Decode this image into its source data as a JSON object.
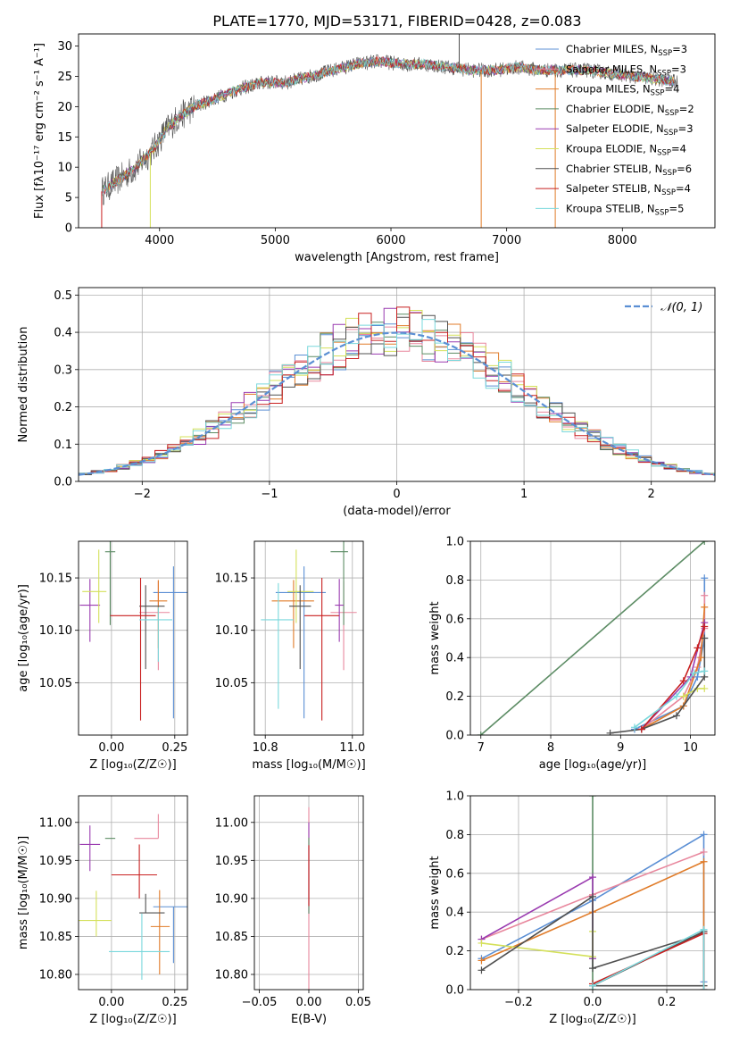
{
  "title": "PLATE=1770, MJD=53171, FIBERID=0428, z=0.083",
  "colors": {
    "chabrier_miles": "#5b8fd4",
    "salpeter_miles": "#e8879d",
    "kroupa_miles": "#e07b28",
    "chabrier_elodie": "#5c8c64",
    "salpeter_elodie": "#9a3bb0",
    "kroupa_elodie": "#d4e05a",
    "chabrier_stelib": "#505050",
    "salpeter_stelib": "#c82020",
    "kroupa_stelib": "#7ad8dc",
    "normal_curve": "#5b8fd4"
  },
  "chart_data": [
    {
      "type": "line",
      "panel": "spectrum",
      "xlabel": "wavelength [Angstrom, rest frame]",
      "ylabel": "Flux [fλ10⁻¹⁷ erg cm⁻² s⁻¹ A⁻¹]",
      "xlim": [
        3300,
        8800
      ],
      "ylim": [
        0,
        32
      ],
      "xticks": [
        "4000",
        "5000",
        "6000",
        "7000",
        "8000"
      ],
      "yticks": [
        "0",
        "5",
        "10",
        "15",
        "20",
        "25",
        "30"
      ],
      "legend_position": "right",
      "legend": [
        {
          "label": "Chabrier MILES, N",
          "sub": "SSP",
          "tail": "=3",
          "color": "chabrier_miles"
        },
        {
          "label": "Salpeter MILES, N",
          "sub": "SSP",
          "tail": "=3",
          "color": "salpeter_miles"
        },
        {
          "label": "Kroupa MILES, N",
          "sub": "SSP",
          "tail": "=4",
          "color": "kroupa_miles"
        },
        {
          "label": "Chabrier ELODIE, N",
          "sub": "SSP",
          "tail": "=2",
          "color": "chabrier_elodie"
        },
        {
          "label": "Salpeter ELODIE, N",
          "sub": "SSP",
          "tail": "=3",
          "color": "salpeter_elodie"
        },
        {
          "label": "Kroupa ELODIE, N",
          "sub": "SSP",
          "tail": "=4",
          "color": "kroupa_elodie"
        },
        {
          "label": "Chabrier STELIB, N",
          "sub": "SSP",
          "tail": "=6",
          "color": "chabrier_stelib"
        },
        {
          "label": "Salpeter STELIB, N",
          "sub": "SSP",
          "tail": "=4",
          "color": "salpeter_stelib"
        },
        {
          "label": "Kroupa STELIB, N",
          "sub": "SSP",
          "tail": "=5",
          "color": "kroupa_stelib"
        }
      ],
      "continuum": {
        "x": [
          3500,
          3650,
          3800,
          3950,
          4050,
          4150,
          4300,
          4500,
          4700,
          4900,
          5100,
          5300,
          5500,
          5700,
          5900,
          6100,
          6300,
          6500,
          6700,
          6900,
          7100,
          7300,
          7500,
          7700,
          7900,
          8100,
          8300,
          8500
        ],
        "y": [
          6,
          8,
          10,
          13,
          16,
          18,
          20,
          21.5,
          23,
          24,
          24,
          25,
          26,
          27,
          27.5,
          27,
          27,
          26.5,
          26,
          26,
          26.5,
          26,
          26,
          26,
          25.5,
          25,
          24.5,
          24
        ]
      },
      "spikes": [
        {
          "x": 3920,
          "y": 0,
          "color": "kroupa_elodie"
        },
        {
          "x": 6780,
          "y": 0,
          "color": "kroupa_miles"
        },
        {
          "x": 7420,
          "y": 0,
          "color": "kroupa_miles"
        },
        {
          "x": 3500,
          "y": 0,
          "color": "salpeter_stelib"
        },
        {
          "x": 6590,
          "y": 32,
          "color": "chabrier_stelib"
        }
      ]
    },
    {
      "type": "step",
      "panel": "residual_histogram",
      "xlabel": "(data-model)/error",
      "ylabel": "Normed distribution",
      "xlim": [
        -2.5,
        2.5
      ],
      "ylim": [
        0,
        0.52
      ],
      "xticks": [
        "−2",
        "−1",
        "0",
        "1",
        "2"
      ],
      "yticks": [
        "0.0",
        "0.1",
        "0.2",
        "0.3",
        "0.4",
        "0.5"
      ],
      "grid": true,
      "legend_position": "top-right",
      "legend": [
        {
          "label": "𝒩(0, 1)",
          "color": "normal_curve"
        }
      ],
      "bin_width": 0.1,
      "bins_start": -2.5,
      "series_colors": [
        "chabrier_miles",
        "salpeter_miles",
        "kroupa_miles",
        "chabrier_elodie",
        "salpeter_elodie",
        "kroupa_elodie",
        "chabrier_stelib",
        "salpeter_stelib",
        "kroupa_stelib"
      ]
    },
    {
      "type": "scatter",
      "panel": "age_vs_Z",
      "xlabel": "Z [log₁₀(Z/Z☉)]",
      "ylabel": "age  [log₁₀(age/yr)]",
      "xlim": [
        -0.13,
        0.3
      ],
      "ylim": [
        10.0,
        10.185
      ],
      "xticks": [
        "0.00",
        "0.25"
      ],
      "yticks": [
        "10.05",
        "10.10",
        "10.15"
      ],
      "grid": true,
      "points": [
        {
          "x": 0.245,
          "y": 10.136,
          "xerr": [
            0.08,
            0.055
          ],
          "yerr": [
            0.12,
            0.025
          ],
          "color": "chabrier_miles"
        },
        {
          "x": 0.185,
          "y": 10.117,
          "xerr": [
            0.075,
            0.045
          ],
          "yerr": [
            0.055,
            0.03
          ],
          "color": "salpeter_miles"
        },
        {
          "x": 0.185,
          "y": 10.128,
          "xerr": [
            0.035,
            0.035
          ],
          "yerr": [
            0.045,
            0.02
          ],
          "color": "kroupa_miles"
        },
        {
          "x": -0.005,
          "y": 10.175,
          "xerr": [
            0.02,
            0.02
          ],
          "yerr": [
            0.07,
            0.03
          ],
          "color": "chabrier_elodie"
        },
        {
          "x": -0.085,
          "y": 10.124,
          "xerr": [
            0.04,
            0.04
          ],
          "yerr": [
            0.035,
            0.025
          ],
          "color": "salpeter_elodie"
        },
        {
          "x": -0.05,
          "y": 10.137,
          "xerr": [
            0.065,
            0.03
          ],
          "yerr": [
            0.03,
            0.04
          ],
          "color": "kroupa_elodie"
        },
        {
          "x": 0.135,
          "y": 10.123,
          "xerr": [
            0.025,
            0.075
          ],
          "yerr": [
            0.06,
            0.02
          ],
          "color": "chabrier_stelib"
        },
        {
          "x": 0.115,
          "y": 10.114,
          "xerr": [
            0.12,
            0.06
          ],
          "yerr": [
            0.1,
            0.036
          ],
          "color": "salpeter_stelib"
        },
        {
          "x": 0.185,
          "y": 10.11,
          "xerr": [
            0.075,
            0.055
          ],
          "yerr": [
            0.04,
            0.012
          ],
          "color": "kroupa_stelib"
        }
      ]
    },
    {
      "type": "scatter",
      "panel": "age_vs_mass",
      "xlabel": "mass [log₁₀(M/M☉)]",
      "ylabel": "",
      "xlim": [
        10.775,
        11.025
      ],
      "ylim": [
        10.0,
        10.185
      ],
      "xticks": [
        "10.8",
        "11.0"
      ],
      "yticks": [
        "10.05",
        "10.10",
        "10.15"
      ],
      "grid": true,
      "points": [
        {
          "x": 10.889,
          "y": 10.136,
          "xerr": [
            0.065,
            0.05
          ],
          "yerr": [
            0.12,
            0.025
          ],
          "color": "chabrier_miles"
        },
        {
          "x": 10.98,
          "y": 10.117,
          "xerr": [
            0.03,
            0.03
          ],
          "yerr": [
            0.055,
            0.03
          ],
          "color": "salpeter_miles"
        },
        {
          "x": 10.865,
          "y": 10.128,
          "xerr": [
            0.05,
            0.047
          ],
          "yerr": [
            0.045,
            0.02
          ],
          "color": "kroupa_miles"
        },
        {
          "x": 10.98,
          "y": 10.175,
          "xerr": [
            0.03,
            0.01
          ],
          "yerr": [
            0.07,
            0.03
          ],
          "color": "chabrier_elodie"
        },
        {
          "x": 10.97,
          "y": 10.124,
          "xerr": [
            0.01,
            0.01
          ],
          "yerr": [
            0.035,
            0.025
          ],
          "color": "salpeter_elodie"
        },
        {
          "x": 10.871,
          "y": 10.137,
          "xerr": [
            0.02,
            0.04
          ],
          "yerr": [
            0.03,
            0.04
          ],
          "color": "kroupa_elodie"
        },
        {
          "x": 10.88,
          "y": 10.123,
          "xerr": [
            0.025,
            0.025
          ],
          "yerr": [
            0.06,
            0.02
          ],
          "color": "chabrier_stelib"
        },
        {
          "x": 10.93,
          "y": 10.114,
          "xerr": [
            0.04,
            0.04
          ],
          "yerr": [
            0.1,
            0.036
          ],
          "color": "salpeter_stelib"
        },
        {
          "x": 10.83,
          "y": 10.11,
          "xerr": [
            0.04,
            0.035
          ],
          "yerr": [
            0.085,
            0.035
          ],
          "color": "kroupa_stelib"
        }
      ]
    },
    {
      "type": "line",
      "panel": "mass_weight_vs_age",
      "xlabel": "age  [log₁₀(age/yr)]",
      "ylabel": "mass weight",
      "xlim": [
        6.85,
        10.35
      ],
      "ylim": [
        0,
        1.0
      ],
      "xticks": [
        "7",
        "8",
        "9",
        "10"
      ],
      "yticks": [
        "0.0",
        "0.2",
        "0.4",
        "0.6",
        "0.8",
        "1.0"
      ],
      "grid": true,
      "series": [
        {
          "color": "chabrier_elodie",
          "x": [
            7.0,
            10.2
          ],
          "y": [
            0.0,
            1.0
          ]
        },
        {
          "color": "chabrier_miles",
          "x": [
            9.2,
            9.9,
            10.1,
            10.2,
            10.2
          ],
          "y": [
            0.03,
            0.15,
            0.3,
            0.5,
            0.81
          ]
        },
        {
          "color": "salpeter_miles",
          "x": [
            9.3,
            9.9,
            10.1,
            10.2,
            10.2
          ],
          "y": [
            0.03,
            0.2,
            0.35,
            0.55,
            0.72
          ]
        },
        {
          "color": "kroupa_miles",
          "x": [
            9.3,
            9.9,
            10.15,
            10.2
          ],
          "y": [
            0.03,
            0.15,
            0.4,
            0.66
          ]
        },
        {
          "color": "salpeter_elodie",
          "x": [
            9.3,
            10.0,
            10.2
          ],
          "y": [
            0.03,
            0.3,
            0.58
          ]
        },
        {
          "color": "kroupa_elodie",
          "x": [
            9.9,
            10.1,
            10.2
          ],
          "y": [
            0.2,
            0.24,
            0.24
          ]
        },
        {
          "color": "chabrier_stelib",
          "x": [
            8.85,
            9.3,
            9.8,
            10.2,
            10.2
          ],
          "y": [
            0.01,
            0.03,
            0.1,
            0.3,
            0.5
          ]
        },
        {
          "color": "salpeter_stelib",
          "x": [
            9.3,
            9.9,
            10.1,
            10.2
          ],
          "y": [
            0.03,
            0.28,
            0.45,
            0.56
          ]
        },
        {
          "color": "kroupa_stelib",
          "x": [
            9.2,
            9.8,
            10.05,
            10.2
          ],
          "y": [
            0.04,
            0.2,
            0.32,
            0.33
          ]
        }
      ]
    },
    {
      "type": "scatter",
      "panel": "mass_vs_Z",
      "xlabel": "Z [log₁₀(Z/Z☉)]",
      "ylabel": "mass [log₁₀(M/M☉)]",
      "xlim": [
        -0.13,
        0.3
      ],
      "ylim": [
        10.78,
        11.035
      ],
      "xticks": [
        "0.00",
        "0.25"
      ],
      "yticks": [
        "10.80",
        "10.85",
        "10.90",
        "10.95",
        "11.00"
      ],
      "grid": true,
      "points": [
        {
          "x": 0.245,
          "y": 10.889,
          "xerr": [
            0.08,
            0.055
          ],
          "yerr": [
            0.074,
            0.0
          ],
          "color": "chabrier_miles"
        },
        {
          "x": 0.185,
          "y": 10.979,
          "xerr": [
            0.095,
            0.0
          ],
          "yerr": [
            0.0,
            0.032
          ],
          "color": "salpeter_miles"
        },
        {
          "x": 0.19,
          "y": 10.863,
          "xerr": [
            0.035,
            0.04
          ],
          "yerr": [
            0.063,
            0.048
          ],
          "color": "kroupa_miles"
        },
        {
          "x": -0.005,
          "y": 10.979,
          "xerr": [
            0.02,
            0.02
          ],
          "yerr": [
            0.0,
            0.0
          ],
          "color": "chabrier_elodie"
        },
        {
          "x": -0.085,
          "y": 10.971,
          "xerr": [
            0.04,
            0.04
          ],
          "yerr": [
            0.035,
            0.025
          ],
          "color": "salpeter_elodie"
        },
        {
          "x": -0.06,
          "y": 10.871,
          "xerr": [
            0.07,
            0.06
          ],
          "yerr": [
            0.021,
            0.039
          ],
          "color": "kroupa_elodie"
        },
        {
          "x": 0.135,
          "y": 10.881,
          "xerr": [
            0.025,
            0.075
          ],
          "yerr": [
            0.0,
            0.025
          ],
          "color": "chabrier_stelib"
        },
        {
          "x": 0.11,
          "y": 10.931,
          "xerr": [
            0.11,
            0.07
          ],
          "yerr": [
            0.031,
            0.04
          ],
          "color": "salpeter_stelib"
        },
        {
          "x": 0.12,
          "y": 10.83,
          "xerr": [
            0.13,
            0.11
          ],
          "yerr": [
            0.037,
            0.05
          ],
          "color": "kroupa_stelib"
        }
      ]
    },
    {
      "type": "scatter",
      "panel": "mass_vs_ebv",
      "xlabel": "E(B-V)",
      "ylabel": "",
      "xlim": [
        -0.055,
        0.055
      ],
      "ylim": [
        10.78,
        11.035
      ],
      "xticks": [
        "−0.05",
        "0.00",
        "0.05"
      ],
      "yticks": [
        "10.80",
        "10.85",
        "10.90",
        "10.95",
        "11.00"
      ],
      "grid": true,
      "points": [
        {
          "x": 0.0,
          "y": 10.93,
          "xerr": [
            0.0,
            0.0
          ],
          "yerr": [
            0.15,
            0.09
          ],
          "color": "salpeter_miles"
        },
        {
          "x": 0.0,
          "y": 10.93,
          "xerr": [
            0.0,
            0.0
          ],
          "yerr": [
            0.05,
            0.07
          ],
          "color": "salpeter_elodie"
        },
        {
          "x": 0.0,
          "y": 10.93,
          "xerr": [
            0.0,
            0.0
          ],
          "yerr": [
            0.05,
            0.05
          ],
          "color": "chabrier_elodie"
        },
        {
          "x": 0.0,
          "y": 10.93,
          "xerr": [
            0.0,
            0.0
          ],
          "yerr": [
            0.04,
            0.04
          ],
          "color": "salpeter_stelib"
        }
      ]
    },
    {
      "type": "line",
      "panel": "mass_weight_vs_Z",
      "xlabel": "Z [log₁₀(Z/Z☉)]",
      "ylabel": "mass weight",
      "xlim": [
        -0.33,
        0.33
      ],
      "ylim": [
        0,
        1.0
      ],
      "xticks": [
        "−0.2",
        "0.0",
        "0.2"
      ],
      "yticks": [
        "0.0",
        "0.2",
        "0.4",
        "0.6",
        "0.8",
        "1.0"
      ],
      "grid": true,
      "series": [
        {
          "color": "chabrier_elodie",
          "x": [
            0.0,
            0.0
          ],
          "y": [
            0.0,
            1.0
          ]
        },
        {
          "color": "chabrier_miles",
          "x": [
            -0.3,
            0.0,
            0.3,
            0.3
          ],
          "y": [
            0.16,
            0.46,
            0.8,
            0.04
          ]
        },
        {
          "color": "salpeter_miles",
          "x": [
            -0.3,
            0.0,
            0.3
          ],
          "y": [
            0.26,
            0.49,
            0.71
          ]
        },
        {
          "color": "kroupa_miles",
          "x": [
            -0.3,
            0.0,
            0.3,
            0.3
          ],
          "y": [
            0.15,
            0.4,
            0.66,
            0.02
          ]
        },
        {
          "color": "salpeter_elodie",
          "x": [
            -0.3,
            0.0,
            0.0
          ],
          "y": [
            0.26,
            0.58,
            0.16
          ]
        },
        {
          "color": "kroupa_elodie",
          "x": [
            -0.3,
            0.0,
            0.0
          ],
          "y": [
            0.24,
            0.17,
            0.3
          ]
        },
        {
          "color": "chabrier_stelib",
          "x": [
            -0.3,
            0.0,
            0.0,
            0.3,
            0.3,
            0.0,
            0.3
          ],
          "y": [
            0.1,
            0.48,
            0.11,
            0.29,
            0.02,
            0.02,
            0.3
          ]
        },
        {
          "color": "salpeter_stelib",
          "x": [
            0.0,
            0.3,
            0.3
          ],
          "y": [
            0.03,
            0.29,
            0.0
          ]
        },
        {
          "color": "kroupa_stelib",
          "x": [
            0.0,
            0.3,
            0.3
          ],
          "y": [
            0.02,
            0.31,
            0.0
          ]
        }
      ]
    }
  ]
}
